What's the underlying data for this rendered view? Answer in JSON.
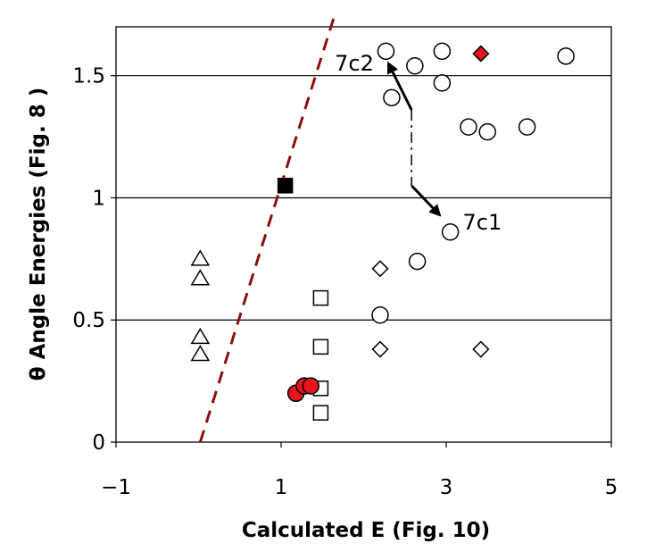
{
  "chart_data": {
    "type": "scatter",
    "xlabel": "Calculated E (Fig. 10)",
    "ylabel": "θ Angle Energies (Fig. 8 )",
    "xlim": [
      -1,
      5
    ],
    "ylim": [
      0,
      1.7
    ],
    "x_ticks": [
      {
        "value": -1,
        "label": "−1"
      },
      {
        "value": 1,
        "label": "1"
      },
      {
        "value": 3,
        "label": "3"
      },
      {
        "value": 5,
        "label": "5"
      }
    ],
    "y_ticks": [
      {
        "value": 0,
        "label": "0"
      },
      {
        "value": 0.5,
        "label": "0.5"
      },
      {
        "value": 1,
        "label": "1"
      },
      {
        "value": 1.5,
        "label": "1.5"
      }
    ],
    "grid": "horizontal",
    "series": [
      {
        "marker": "circle-open",
        "color": "#ffffff",
        "points": [
          [
            2.27,
            1.6
          ],
          [
            2.62,
            1.54
          ],
          [
            2.95,
            1.6
          ],
          [
            4.45,
            1.58
          ],
          [
            2.34,
            1.41
          ],
          [
            2.95,
            1.47
          ],
          [
            3.27,
            1.29
          ],
          [
            3.5,
            1.27
          ],
          [
            3.98,
            1.29
          ],
          [
            3.05,
            0.86
          ],
          [
            2.65,
            0.74
          ],
          [
            2.2,
            0.52
          ]
        ]
      },
      {
        "marker": "diamond-open",
        "color": "#ffffff",
        "points": [
          [
            2.2,
            0.71
          ],
          [
            2.2,
            0.38
          ],
          [
            3.42,
            0.38
          ]
        ]
      },
      {
        "marker": "diamond-filled",
        "color": "#e8141c",
        "points": [
          [
            3.42,
            1.59
          ]
        ]
      },
      {
        "marker": "square-open",
        "color": "#ffffff",
        "points": [
          [
            1.48,
            0.59
          ],
          [
            1.48,
            0.39
          ],
          [
            1.48,
            0.22
          ],
          [
            1.48,
            0.12
          ]
        ]
      },
      {
        "marker": "square-filled",
        "color": "#000000",
        "points": [
          [
            1.05,
            1.05
          ]
        ]
      },
      {
        "marker": "triangle-open",
        "color": "#ffffff",
        "points": [
          [
            0.02,
            0.75
          ],
          [
            0.02,
            0.67
          ],
          [
            0.02,
            0.43
          ],
          [
            0.02,
            0.36
          ]
        ]
      },
      {
        "marker": "circle-filled",
        "color": "#e8141c",
        "points": [
          [
            1.18,
            0.2
          ],
          [
            1.28,
            0.23
          ],
          [
            1.36,
            0.23
          ]
        ]
      }
    ],
    "fit_line": {
      "style": "dashed",
      "color": "#8b0f0f",
      "points": [
        [
          0.02,
          0.0
        ],
        [
          1.7,
          1.75
        ]
      ]
    },
    "annotations": [
      {
        "text": "7c2",
        "x": 1.65,
        "y": 1.52
      },
      {
        "text": "7c1",
        "x": 3.2,
        "y": 0.87
      }
    ],
    "arrows": [
      {
        "from": [
          2.58,
          1.36
        ],
        "to": [
          2.3,
          1.55
        ]
      },
      {
        "from": [
          2.58,
          1.05
        ],
        "to": [
          2.92,
          0.93
        ]
      }
    ],
    "connector": {
      "from": [
        2.58,
        1.36
      ],
      "to": [
        2.58,
        1.05
      ],
      "style": "dashdot"
    }
  }
}
